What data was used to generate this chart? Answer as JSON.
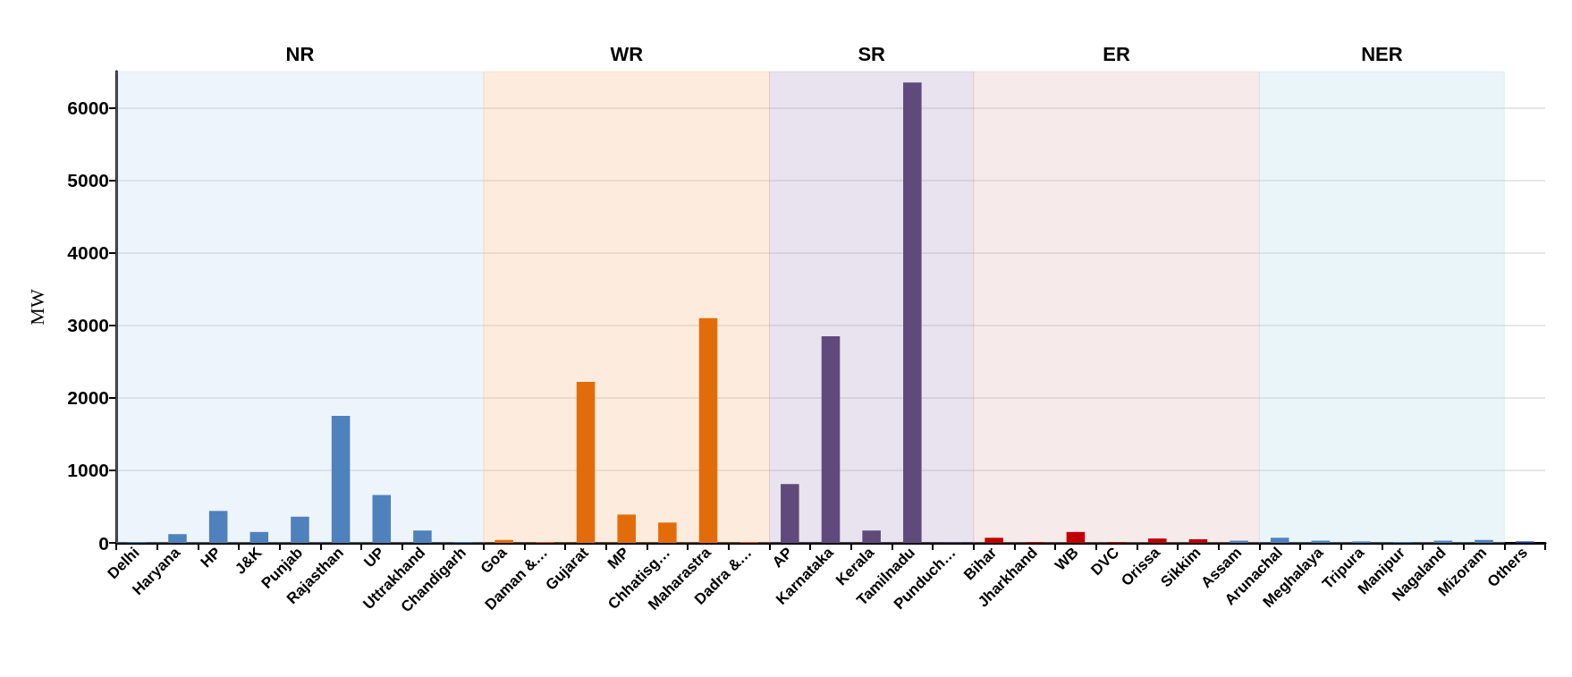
{
  "chart_data": {
    "type": "bar",
    "ylabel": "MW",
    "categories": [
      "Delhi",
      "Haryana",
      "HP",
      "J&K",
      "Punjab",
      "Rajasthan",
      "UP",
      "Uttrakhand",
      "Chandigarh",
      "Goa",
      "Daman &…",
      "Gujarat",
      "MP",
      "Chhatisg…",
      "Maharastra",
      "Dadra &…",
      "AP",
      "Karnataka",
      "Kerala",
      "Tamilnadu",
      "Punduch…",
      "Bihar",
      "Jharkhand",
      "WB",
      "DVC",
      "Orissa",
      "Sikkim",
      "Assam",
      "Arunachal",
      "Meghalaya",
      "Tripura",
      "Manipur",
      "Nagaland",
      "Mizoram",
      "Others"
    ],
    "values": [
      10,
      120,
      440,
      150,
      360,
      1750,
      660,
      170,
      10,
      40,
      10,
      2220,
      390,
      280,
      3100,
      10,
      810,
      2850,
      170,
      6350,
      10,
      70,
      10,
      150,
      10,
      60,
      50,
      30,
      70,
      30,
      20,
      10,
      30,
      40,
      20
    ],
    "colors": [
      "#4f81bd",
      "#4f81bd",
      "#4f81bd",
      "#4f81bd",
      "#4f81bd",
      "#4f81bd",
      "#4f81bd",
      "#4f81bd",
      "#4f81bd",
      "#e36c0a",
      "#e36c0a",
      "#e36c0a",
      "#e36c0a",
      "#e36c0a",
      "#e36c0a",
      "#e36c0a",
      "#604a7b",
      "#604a7b",
      "#604a7b",
      "#604a7b",
      "#604a7b",
      "#c00000",
      "#c00000",
      "#c00000",
      "#c00000",
      "#c00000",
      "#c00000",
      "#4f81bd",
      "#4f81bd",
      "#4f81bd",
      "#4f81bd",
      "#4f81bd",
      "#4f81bd",
      "#4f81bd",
      "#1f3c9f"
    ],
    "ylim": [
      0,
      6500
    ],
    "yticks": [
      0,
      1000,
      2000,
      3000,
      4000,
      5000,
      6000
    ],
    "grid": "y",
    "bands": [
      {
        "axis": "x",
        "from": "Delhi",
        "to": "Chandigarh",
        "label": "NR",
        "color": "#c6d9f1"
      },
      {
        "axis": "x",
        "from": "Goa",
        "to": "Dadra &…",
        "label": "WR",
        "color": "#fac090"
      },
      {
        "axis": "x",
        "from": "AP",
        "to": "Punduch…",
        "label": "SR",
        "color": "#b2a1c7"
      },
      {
        "axis": "x",
        "from": "Bihar",
        "to": "Assam",
        "label": "ER",
        "color": "#e6b9b8"
      },
      {
        "axis": "x",
        "from": "Arunachal",
        "to": "Mizoram",
        "label": "NER",
        "color": "#b7dee8"
      }
    ]
  }
}
